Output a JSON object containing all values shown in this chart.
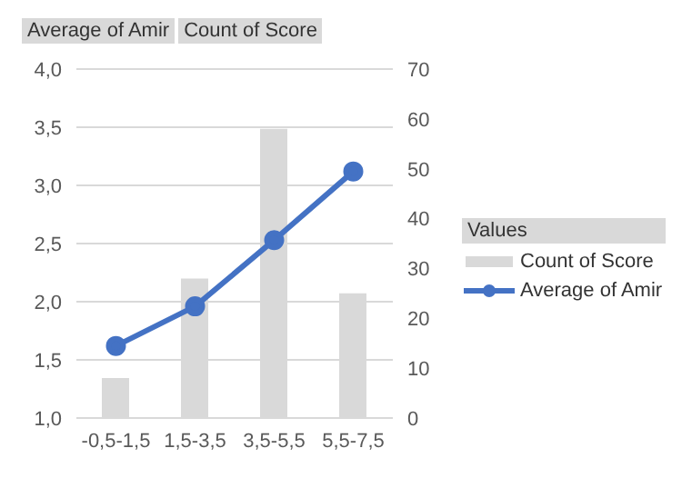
{
  "chart_data": {
    "type": "bar",
    "categories": [
      "-0,5-1,5",
      "1,5-3,5",
      "3,5-5,5",
      "5,5-7,5"
    ],
    "series": [
      {
        "name": "Count of Score",
        "axis": "y2",
        "color": "#d9d9d9",
        "values": [
          8,
          28,
          58,
          25
        ]
      },
      {
        "name": "Average of Amir",
        "type": "line",
        "axis": "y",
        "color": "#4472c4",
        "values": [
          1.62,
          1.96,
          2.53,
          3.12
        ]
      }
    ],
    "ylim": [
      1,
      4
    ],
    "yticks": [
      {
        "value": 1,
        "label": "1,0"
      },
      {
        "value": 1.5,
        "label": "1,5"
      },
      {
        "value": 2,
        "label": "2,0"
      },
      {
        "value": 2.5,
        "label": "2,5"
      },
      {
        "value": 3,
        "label": "3,0"
      },
      {
        "value": 3.5,
        "label": "3,5"
      },
      {
        "value": 4,
        "label": "4,0"
      }
    ],
    "y2lim": [
      0,
      70
    ],
    "y2ticks": [
      0,
      10,
      20,
      30,
      40,
      50,
      60,
      70
    ],
    "grid": "y",
    "legend": "right",
    "legend_title": "Values",
    "marker": "circle",
    "line_style": "solid",
    "annotations": [
      "Average of Amir",
      "Count of Score"
    ]
  }
}
